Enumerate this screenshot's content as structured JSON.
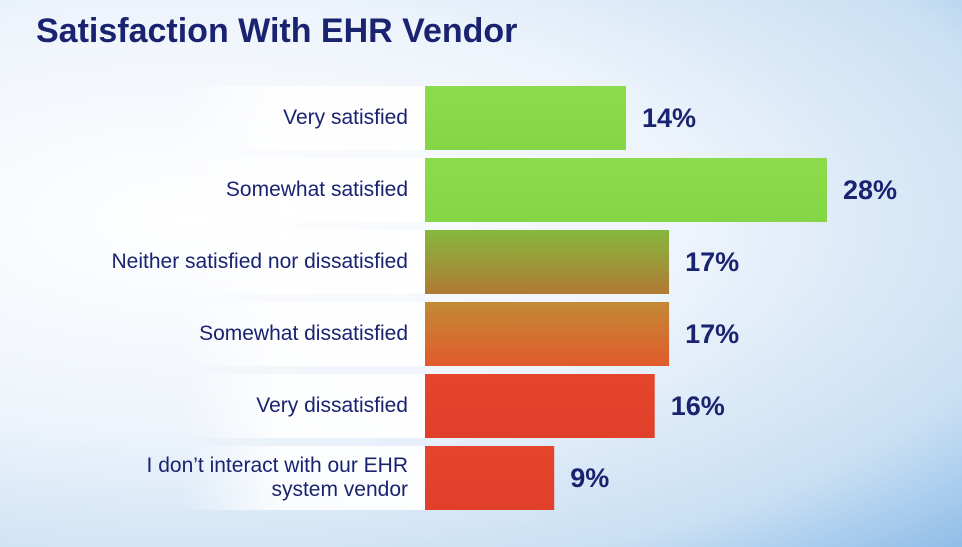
{
  "chart_data": {
    "type": "bar",
    "orientation": "horizontal",
    "title": "Satisfaction With EHR Vendor",
    "categories": [
      "Very satisfied",
      "Somewhat satisfied",
      "Neither satisfied nor dissatisfied",
      "Somewhat dissatisfied",
      "Very dissatisfied",
      "I don’t interact with our EHR system vendor"
    ],
    "values": [
      14,
      28,
      17,
      17,
      16,
      9
    ],
    "value_labels": [
      "14%",
      "28%",
      "17%",
      "17%",
      "16%",
      "9%"
    ],
    "colors": [
      [
        "#8cdb4a",
        "#84d646"
      ],
      [
        "#8cdb4a",
        "#84d646"
      ],
      [
        "#86b83e",
        "#b07a34"
      ],
      [
        "#c28a36",
        "#e25a2c"
      ],
      [
        "#e5452c",
        "#e0402a"
      ],
      [
        "#e5452c",
        "#e0402a"
      ]
    ],
    "xlim": [
      0,
      28
    ]
  }
}
